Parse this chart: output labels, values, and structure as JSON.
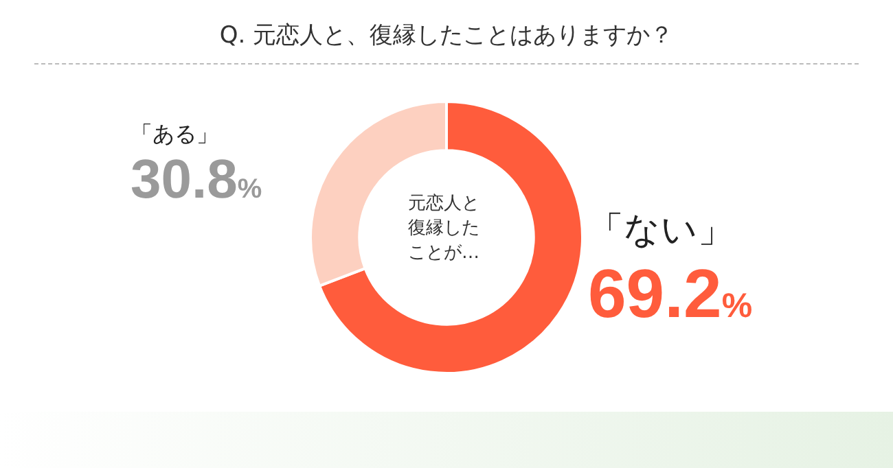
{
  "chart_data": {
    "type": "donut",
    "title": "Q. 元恋人と、復縁したことはありますか？",
    "categories": [
      "「ない」",
      "「ある」"
    ],
    "values": [
      69.2,
      30.8
    ],
    "colors": [
      "#ff5c3c",
      "#fdd0c0"
    ],
    "value_labels": [
      "69.2%",
      "30.8%"
    ],
    "annotations": [
      "元恋人と復縁したことが…"
    ],
    "legend": false
  }
}
